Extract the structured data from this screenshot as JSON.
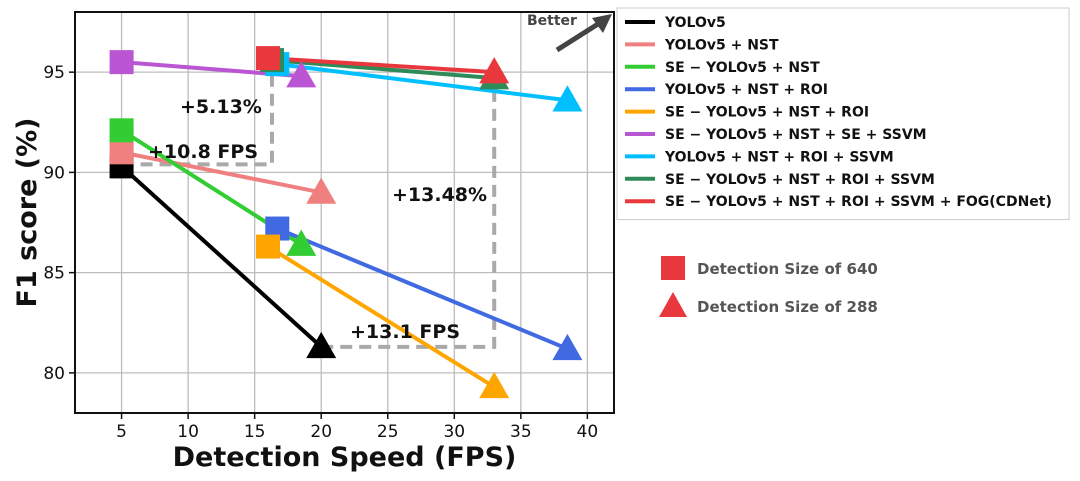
{
  "chart_data": {
    "type": "line",
    "xlabel": "Detection Speed (FPS)",
    "ylabel": "F1 score (%)",
    "xlim": [
      1.5,
      42
    ],
    "ylim": [
      78,
      98
    ],
    "xticks": [
      5,
      10,
      15,
      20,
      25,
      30,
      35,
      40
    ],
    "yticks": [
      80,
      85,
      90,
      95
    ],
    "grid": true,
    "legend_position": "top-right-outside",
    "series": [
      {
        "name": "YOLOv5",
        "color": "#000000",
        "points": [
          [
            5,
            90.3
          ],
          [
            20,
            81.3
          ]
        ]
      },
      {
        "name": "YOLOv5 + NST",
        "color": "#f08080",
        "points": [
          [
            5,
            91.0
          ],
          [
            20,
            89.0
          ]
        ]
      },
      {
        "name": "SE − YOLOv5 + NST",
        "color": "#32cd32",
        "points": [
          [
            5,
            92.1
          ],
          [
            18.5,
            86.4
          ]
        ]
      },
      {
        "name": "YOLOv5 + NST + ROI",
        "color": "#4169e1",
        "points": [
          [
            16.7,
            87.2
          ],
          [
            38.5,
            81.2
          ]
        ]
      },
      {
        "name": "SE − YOLOv5 + NST + ROI",
        "color": "#ffa500",
        "points": [
          [
            16,
            86.3
          ],
          [
            33,
            79.3
          ]
        ]
      },
      {
        "name": "SE − YOLOv5 + NST + SE + SSVM",
        "color": "#ba55d3",
        "points": [
          [
            5,
            95.5
          ],
          [
            18.5,
            94.8
          ]
        ]
      },
      {
        "name": "YOLOv5 + NST + ROI + SSVM",
        "color": "#00bfff",
        "points": [
          [
            16.7,
            95.4
          ],
          [
            38.5,
            93.6
          ]
        ]
      },
      {
        "name": "SE − YOLOv5 + NST + ROI + SSVM",
        "color": "#2e8b57",
        "points": [
          [
            16.3,
            95.6
          ],
          [
            33,
            94.7
          ]
        ]
      },
      {
        "name": "SE − YOLOv5 + NST + ROI + SSVM + FOG(CDNet)",
        "color": "#e8383d",
        "points": [
          [
            16,
            95.7
          ],
          [
            33,
            95.0
          ]
        ]
      }
    ],
    "marker_legend": [
      {
        "label": "Detection Size of 640",
        "marker": "square",
        "color": "#e8383d"
      },
      {
        "label": "Detection Size of 288",
        "marker": "triangle",
        "color": "#e8383d"
      }
    ],
    "annotations": [
      {
        "text": "+5.13%"
      },
      {
        "text": "+10.8 FPS"
      },
      {
        "text": "+13.48%"
      },
      {
        "text": "+13.1 FPS"
      },
      {
        "text": "Better"
      }
    ]
  }
}
